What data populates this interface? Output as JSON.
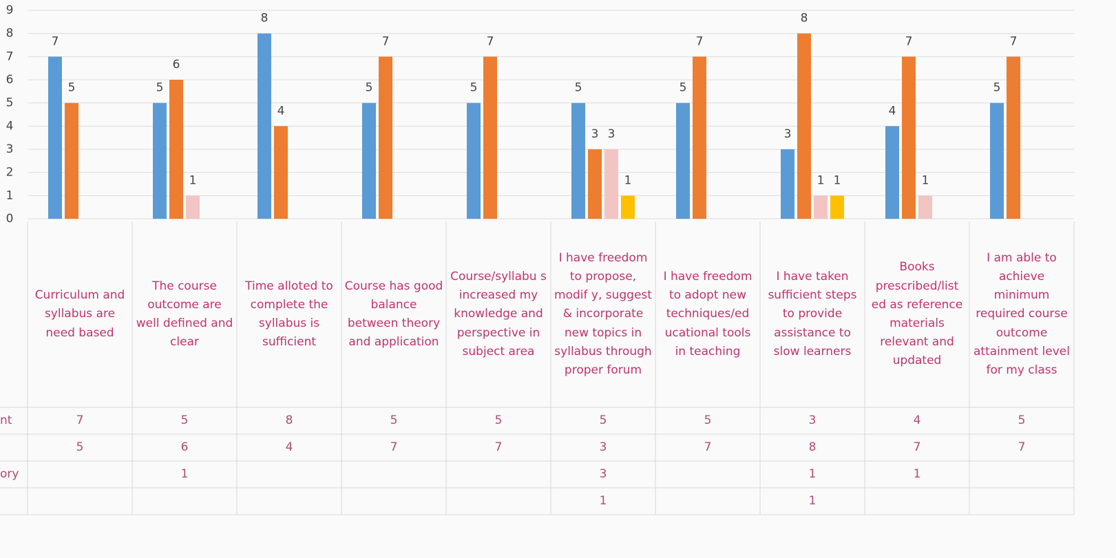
{
  "chart_data": {
    "type": "bar",
    "categories": [
      "Curriculum and syllabus are need based",
      "The course outcome are well defined and clear",
      "Time alloted to complete the syllabus is sufficient",
      "Course has good balance between theory and application",
      "Course/syllabu s increased my knowledge and perspective in subject area",
      "I have freedom to propose, modif y, suggest & incorporate new topics in syllabus through proper forum",
      "I have freedom to adopt new techniques/ed ucational tools in teaching",
      "I have taken sufficient steps to provide assistance to slow learners",
      "Books prescribed/list ed as reference materials relevant and updated",
      "I am able to achieve minimum required course outcome attainment level for my class"
    ],
    "series": [
      {
        "name": "nt",
        "color": "#5b9bd5",
        "values": [
          7,
          5,
          8,
          5,
          5,
          5,
          5,
          3,
          4,
          5
        ]
      },
      {
        "color": "#ed7d31",
        "values": [
          5,
          6,
          4,
          7,
          7,
          3,
          7,
          8,
          7,
          7
        ]
      },
      {
        "name": "ory",
        "color": "#f2c4c4",
        "values": [
          null,
          1,
          null,
          null,
          null,
          3,
          null,
          1,
          1,
          null
        ]
      },
      {
        "color": "#ffc000",
        "values": [
          null,
          null,
          null,
          null,
          null,
          1,
          null,
          1,
          null,
          null
        ]
      }
    ],
    "ylim": [
      0,
      9
    ],
    "yticks": [
      0,
      1,
      2,
      3,
      4,
      5,
      6,
      7,
      8,
      9
    ],
    "grid": true
  }
}
